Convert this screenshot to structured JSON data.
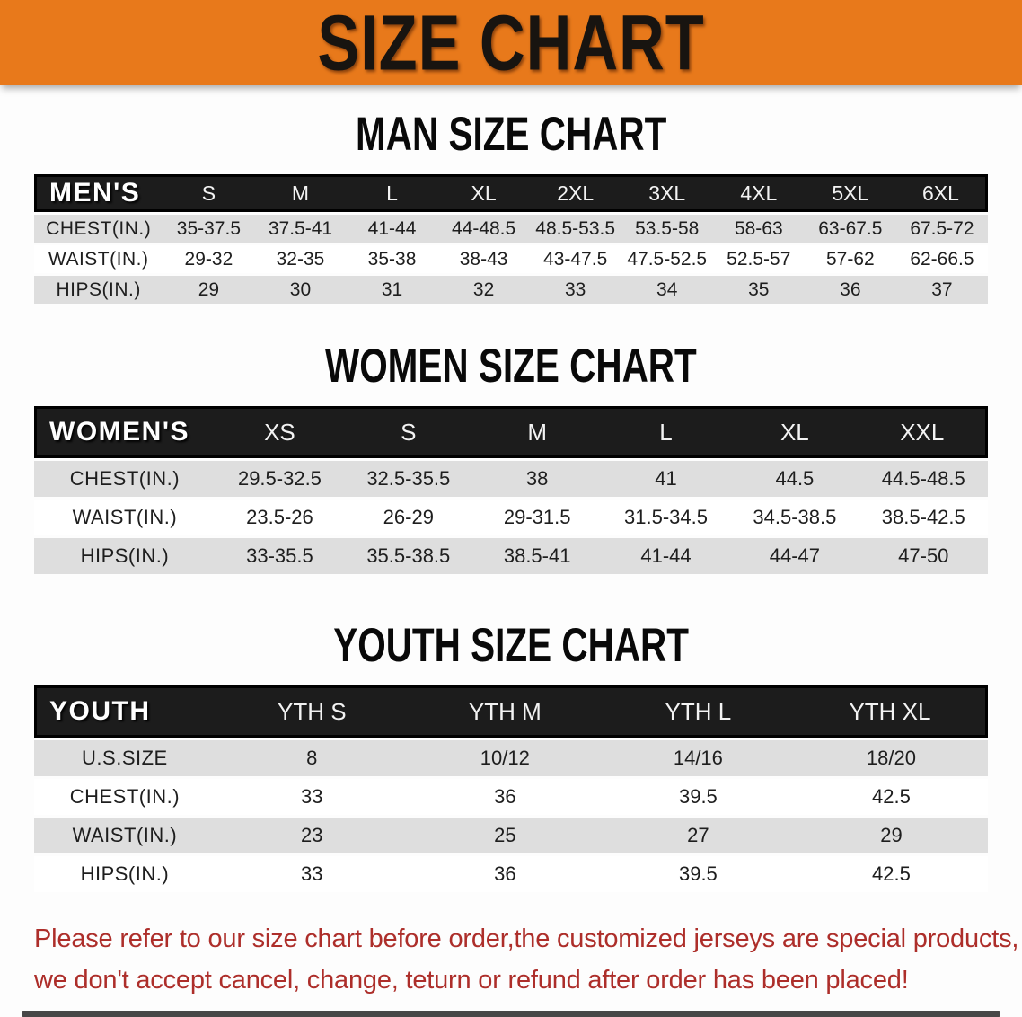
{
  "banner": {
    "title": "SIZE CHART",
    "bg_color": "#e8791b",
    "text_color": "#181410"
  },
  "sections": [
    {
      "title": "MAN SIZE CHART",
      "header_label": "MEN'S",
      "sizes": [
        "S",
        "M",
        "L",
        "XL",
        "2XL",
        "3XL",
        "4XL",
        "5XL",
        "6XL"
      ],
      "rows": [
        {
          "label": "CHEST(IN.)",
          "values": [
            "35-37.5",
            "37.5-41",
            "41-44",
            "44-48.5",
            "48.5-53.5",
            "53.5-58",
            "58-63",
            "63-67.5",
            "67.5-72"
          ]
        },
        {
          "label": "WAIST(IN.)",
          "values": [
            "29-32",
            "32-35",
            "35-38",
            "38-43",
            "43-47.5",
            "47.5-52.5",
            "52.5-57",
            "57-62",
            "62-66.5"
          ]
        },
        {
          "label": "HIPS(IN.)",
          "values": [
            "29",
            "30",
            "31",
            "32",
            "33",
            "34",
            "35",
            "36",
            "37"
          ]
        }
      ]
    },
    {
      "title": "WOMEN SIZE CHART",
      "header_label": "WOMEN'S",
      "sizes": [
        "XS",
        "S",
        "M",
        "L",
        "XL",
        "XXL"
      ],
      "rows": [
        {
          "label": "CHEST(IN.)",
          "values": [
            "29.5-32.5",
            "32.5-35.5",
            "38",
            "41",
            "44.5",
            "44.5-48.5"
          ]
        },
        {
          "label": "WAIST(IN.)",
          "values": [
            "23.5-26",
            "26-29",
            "29-31.5",
            "31.5-34.5",
            "34.5-38.5",
            "38.5-42.5"
          ]
        },
        {
          "label": "HIPS(IN.)",
          "values": [
            "33-35.5",
            "35.5-38.5",
            "38.5-41",
            "41-44",
            "44-47",
            "47-50"
          ]
        }
      ]
    },
    {
      "title": "YOUTH SIZE CHART",
      "header_label": "YOUTH",
      "sizes": [
        "YTH S",
        "YTH M",
        "YTH L",
        "YTH XL"
      ],
      "rows": [
        {
          "label": "U.S.SIZE",
          "values": [
            "8",
            "10/12",
            "14/16",
            "18/20"
          ]
        },
        {
          "label": "CHEST(IN.)",
          "values": [
            "33",
            "36",
            "39.5",
            "42.5"
          ]
        },
        {
          "label": "WAIST(IN.)",
          "values": [
            "23",
            "25",
            "27",
            "29"
          ]
        },
        {
          "label": "HIPS(IN.)",
          "values": [
            "33",
            "36",
            "39.5",
            "42.5"
          ]
        }
      ]
    }
  ],
  "table_style": {
    "header_bg": "#1c1c1c",
    "row_alt_bg": "#dedede",
    "row_bg": "#ffffff"
  },
  "footer": {
    "line1": "Please refer to our size chart before order,the customized jerseys are special products,",
    "line2": "we don't accept cancel, change, teturn or refund after order has been placed!",
    "text_color": "#ad2e2a"
  }
}
